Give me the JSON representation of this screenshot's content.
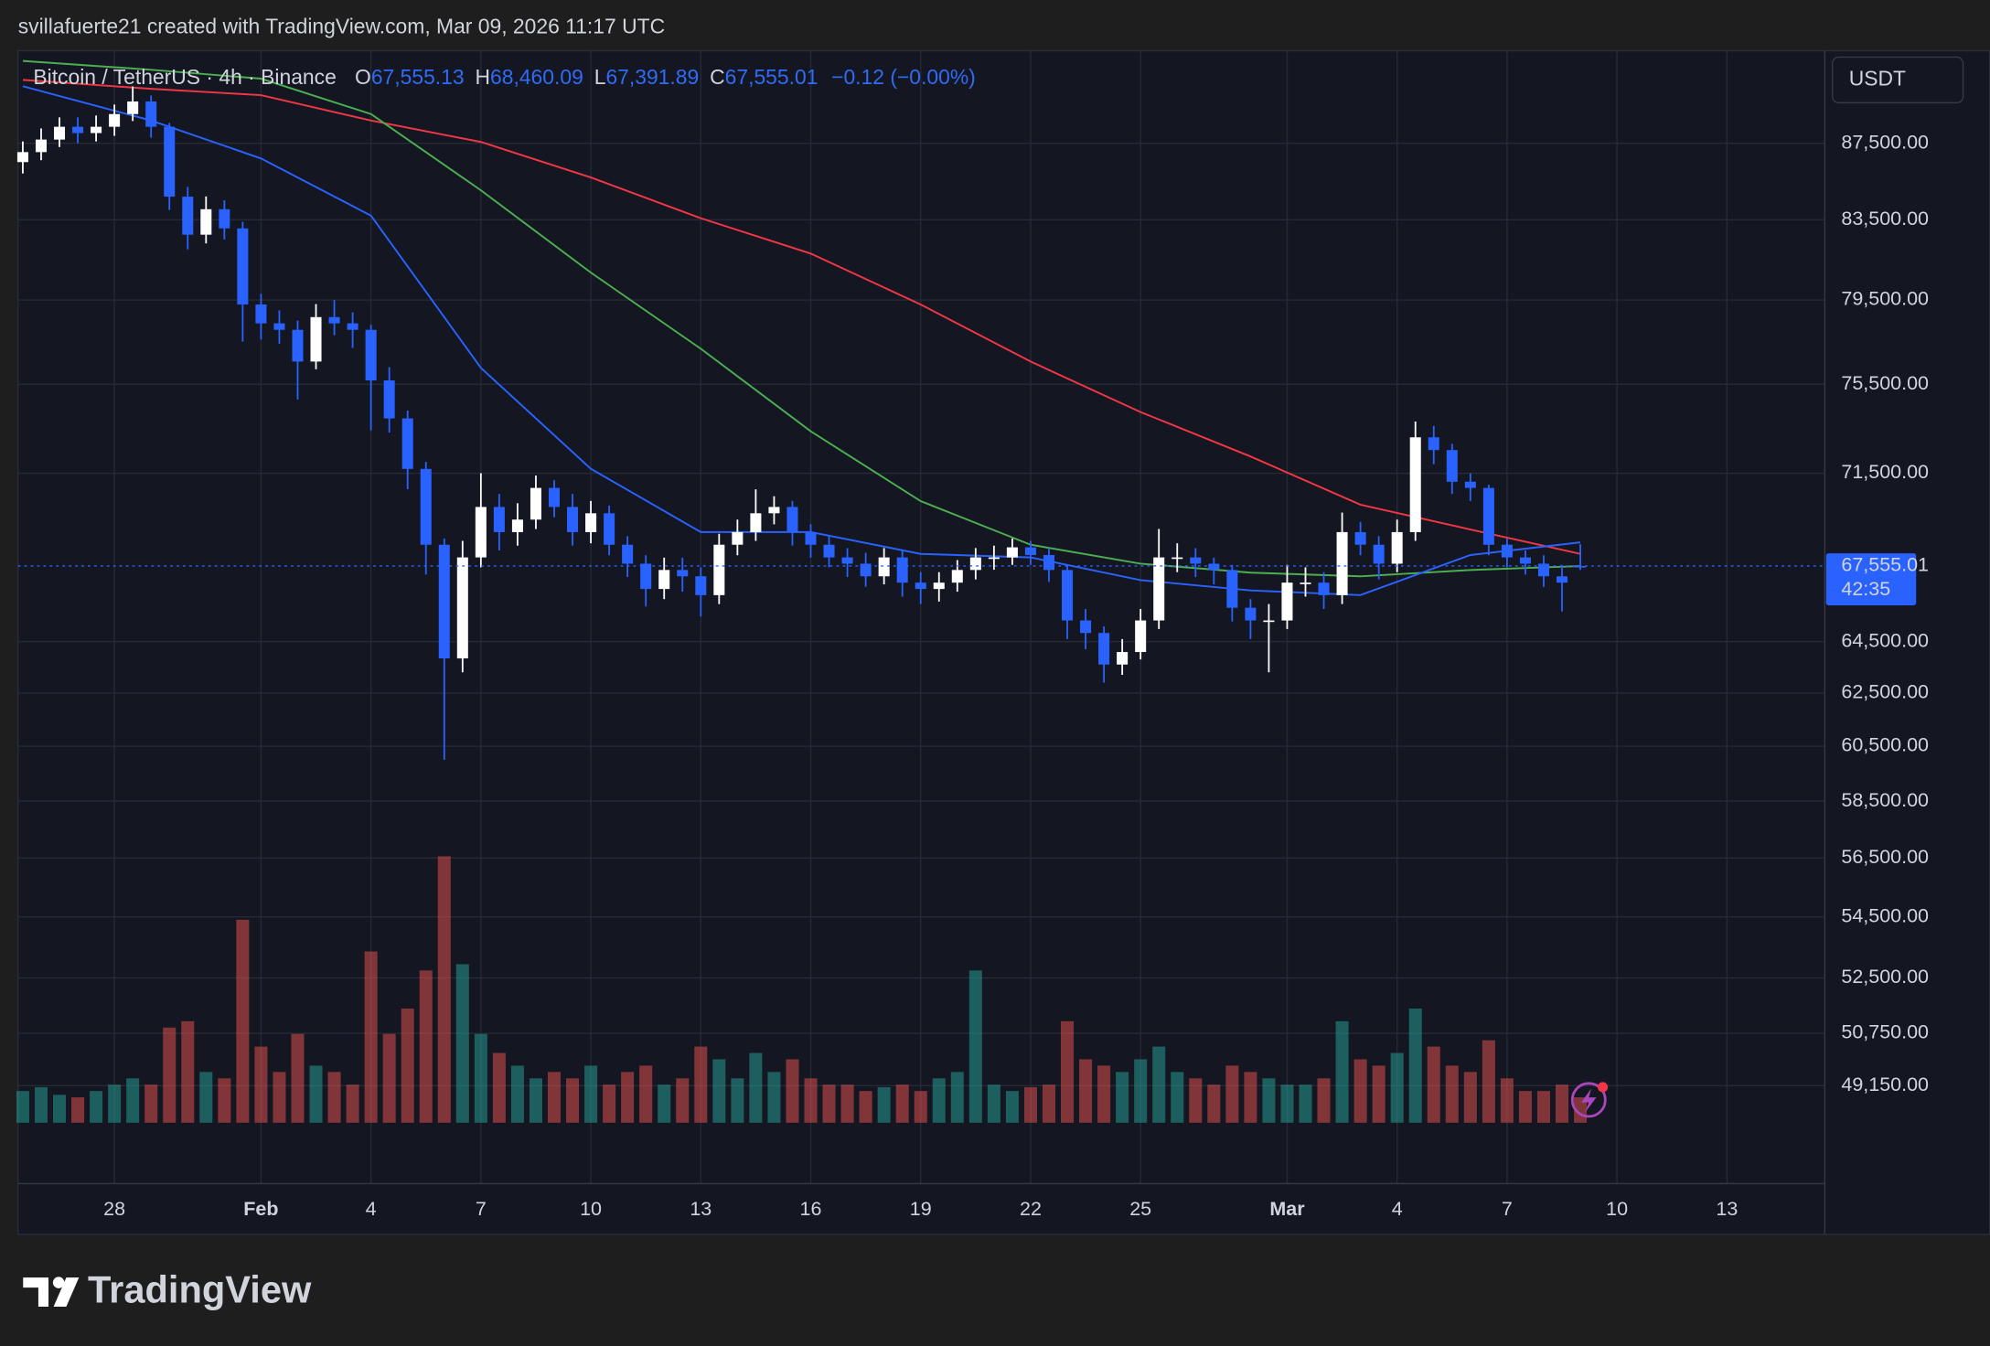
{
  "attribution": "svillafuerte21 created with TradingView.com, Mar 09, 2026 11:17 UTC",
  "brand": "TradingView",
  "chart_data": {
    "type": "candlestick",
    "title": "Bitcoin / TetherUS · 4h · Binance",
    "legend": {
      "ohlc": [
        {
          "label": "O",
          "value": "67,555.13"
        },
        {
          "label": "H",
          "value": "68,460.09"
        },
        {
          "label": "L",
          "value": "67,391.89"
        },
        {
          "label": "C",
          "value": "67,555.01"
        }
      ],
      "change": "−0.12 (−0.00%)"
    },
    "currency": "USDT",
    "x": [
      25.5,
      26,
      26.5,
      27,
      27.5,
      28,
      28.5,
      29,
      29.5,
      30,
      30.5,
      31,
      31.5,
      32,
      32.5,
      33,
      33.5,
      34,
      34.5,
      35,
      35.5,
      36,
      36.5,
      37,
      37.5,
      38,
      38.5,
      39,
      39.5,
      40,
      40.5,
      41,
      41.5,
      42,
      42.5,
      43,
      43.5,
      44,
      44.5,
      45,
      45.5,
      46,
      46.5,
      47,
      47.5,
      48,
      48.5,
      49,
      49.5,
      50,
      50.5,
      51,
      51.5,
      52,
      52.5,
      53,
      53.5,
      54,
      54.5,
      55,
      55.5,
      56,
      56.5,
      57,
      57.5,
      58,
      58.5,
      59,
      59.5,
      60,
      60.5,
      61,
      61.5,
      62,
      62.5,
      63,
      63.5,
      64,
      64.5,
      65,
      65.5,
      66,
      66.5,
      67,
      67.5,
      68
    ],
    "open": [
      86500,
      87030,
      87700,
      88390,
      88050,
      88390,
      89080,
      89770,
      88390,
      84690,
      82740,
      84040,
      83060,
      79280,
      78370,
      78060,
      76560,
      78670,
      78370,
      78060,
      75680,
      73940,
      71690,
      68440,
      63840,
      67910,
      70040,
      68970,
      69500,
      70860,
      70040,
      68970,
      69770,
      68440,
      67650,
      66610,
      67390,
      67130,
      66360,
      68440,
      68970,
      69770,
      70040,
      68970,
      68440,
      67910,
      67650,
      67130,
      67910,
      66870,
      66610,
      66870,
      67390,
      67910,
      67910,
      68330,
      68010,
      67390,
      65340,
      64840,
      63600,
      64090,
      65340,
      67910,
      67910,
      67650,
      67390,
      65850,
      65340,
      65340,
      66870,
      66870,
      66360,
      68970,
      68440,
      67650,
      68970,
      73090,
      72520,
      71130,
      70860,
      68440,
      67910,
      67650,
      67130,
      67555.13
    ],
    "high": [
      87600,
      88300,
      88900,
      88900,
      89000,
      89600,
      90600,
      90100,
      88600,
      85200,
      84700,
      84500,
      83400,
      79800,
      79000,
      78500,
      79300,
      79500,
      78900,
      78300,
      76300,
      74300,
      72000,
      68700,
      68600,
      71500,
      70600,
      70200,
      71400,
      71200,
      70600,
      70300,
      70100,
      68800,
      68000,
      67900,
      67900,
      67500,
      68900,
      69500,
      70800,
      70500,
      70300,
      69300,
      68800,
      68300,
      68100,
      68300,
      68200,
      67300,
      67300,
      67800,
      68300,
      68400,
      68700,
      68600,
      68300,
      67600,
      65800,
      65100,
      64600,
      65800,
      69100,
      68500,
      68300,
      67900,
      67600,
      66200,
      66000,
      67600,
      67500,
      67300,
      69800,
      69400,
      68800,
      69500,
      73800,
      73600,
      72800,
      71500,
      71000,
      68700,
      68200,
      68000,
      67600,
      68460.09
    ],
    "low": [
      85900,
      86600,
      87300,
      87500,
      87600,
      87900,
      88700,
      87800,
      84000,
      82000,
      82300,
      82500,
      77500,
      77600,
      77400,
      74800,
      76200,
      77800,
      77200,
      73400,
      73300,
      70800,
      67200,
      60000,
      63300,
      67500,
      68200,
      68400,
      69100,
      69600,
      68400,
      68500,
      68000,
      67100,
      65900,
      66200,
      66500,
      65500,
      66000,
      68000,
      68600,
      69300,
      68400,
      67900,
      67500,
      67100,
      66700,
      66800,
      66300,
      66000,
      66100,
      66500,
      67000,
      67400,
      67600,
      67600,
      66900,
      64600,
      64200,
      62900,
      63200,
      63800,
      65000,
      67300,
      67100,
      66800,
      65300,
      64600,
      63300,
      65000,
      66300,
      65800,
      66000,
      68000,
      67000,
      67300,
      68600,
      71900,
      70600,
      70300,
      68000,
      67500,
      67200,
      66700,
      65700,
      67391.89
    ],
    "close": [
      87030,
      87700,
      88390,
      88050,
      88390,
      89080,
      89770,
      88390,
      84690,
      82740,
      84040,
      83060,
      79280,
      78370,
      78060,
      76560,
      78670,
      78370,
      78060,
      75680,
      73940,
      71690,
      68440,
      63840,
      67910,
      70040,
      68970,
      69500,
      70860,
      70040,
      68970,
      69770,
      68440,
      67650,
      66610,
      67390,
      67130,
      66360,
      68440,
      68970,
      69770,
      70040,
      68970,
      68440,
      67910,
      67650,
      67130,
      67910,
      66870,
      66610,
      66870,
      67390,
      67910,
      67910,
      68330,
      68010,
      67390,
      65340,
      64840,
      63600,
      64090,
      65340,
      67910,
      67910,
      67650,
      67390,
      65850,
      65340,
      65340,
      66870,
      66870,
      66360,
      68970,
      68440,
      67650,
      68970,
      73090,
      72520,
      71130,
      70860,
      68440,
      67910,
      67650,
      67130,
      66870,
      67555.01
    ],
    "volume": [
      25,
      28,
      22,
      20,
      25,
      30,
      35,
      30,
      75,
      80,
      40,
      35,
      160,
      60,
      40,
      70,
      45,
      40,
      30,
      135,
      70,
      90,
      120,
      210,
      125,
      70,
      55,
      45,
      35,
      40,
      35,
      45,
      30,
      40,
      45,
      30,
      35,
      60,
      50,
      35,
      55,
      40,
      50,
      35,
      30,
      30,
      25,
      28,
      30,
      25,
      35,
      40,
      120,
      30,
      25,
      28,
      30,
      80,
      50,
      45,
      40,
      50,
      60,
      40,
      35,
      30,
      45,
      40,
      35,
      30,
      30,
      35,
      80,
      50,
      45,
      55,
      90,
      60,
      45,
      40,
      65,
      35,
      25,
      25,
      30,
      20
    ],
    "up_color": "#ffffff",
    "down_color": "#2962ff",
    "volume_up_color": "#26a69a",
    "volume_down_color": "#ef5350",
    "moving_averages": [
      {
        "color": "#f23645",
        "x": [
          25.5,
          29,
          32,
          35,
          38,
          41,
          44,
          47,
          50,
          53,
          56,
          59,
          62,
          65,
          68
        ],
        "values": [
          90960,
          90470,
          90120,
          88730,
          87570,
          85690,
          83580,
          81790,
          79280,
          76560,
          74230,
          72240,
          70140,
          69080,
          68060
        ]
      },
      {
        "color": "#4caf50",
        "x": [
          25.5,
          29,
          32,
          35,
          38,
          41,
          44,
          47,
          50,
          53,
          56,
          59,
          62,
          65,
          68
        ],
        "values": [
          92030,
          91530,
          91030,
          89080,
          85020,
          80840,
          77160,
          73360,
          70290,
          68440,
          67650,
          67280,
          67130,
          67390,
          67550
        ]
      },
      {
        "color": "#2962ff",
        "x": [
          25.5,
          29,
          32,
          35,
          38,
          41,
          44,
          47,
          50,
          53,
          56,
          59,
          62,
          65,
          68
        ],
        "values": [
          90610,
          88730,
          86690,
          83710,
          76260,
          71690,
          68970,
          68970,
          68060,
          67910,
          66970,
          66550,
          66360,
          68010,
          68540
        ]
      }
    ],
    "log_scale": true,
    "grid": true,
    "ylim": [
      46290,
      92600
    ],
    "yticks": [
      {
        "value": 87500,
        "label": "87,500.00"
      },
      {
        "value": 83500,
        "label": "83,500.00"
      },
      {
        "value": 79500,
        "label": "79,500.00"
      },
      {
        "value": 75500,
        "label": "75,500.00"
      },
      {
        "value": 71500,
        "label": "71,500.00"
      },
      {
        "value": 64500,
        "label": "64,500.00"
      },
      {
        "value": 62500,
        "label": "62,500.00"
      },
      {
        "value": 60500,
        "label": "60,500.00"
      },
      {
        "value": 58500,
        "label": "58,500.00"
      },
      {
        "value": 56500,
        "label": "56,500.00"
      },
      {
        "value": 54500,
        "label": "54,500.00"
      },
      {
        "value": 52500,
        "label": "52,500.00"
      },
      {
        "value": 50750,
        "label": "50,750.00"
      },
      {
        "value": 49150,
        "label": "49,150.00"
      }
    ],
    "xlim": [
      25.37,
      74.67
    ],
    "xticks": [
      28,
      {
        "value": 32,
        "label": "Feb"
      },
      {
        "value": 35,
        "label": "4"
      },
      {
        "value": 38,
        "label": "7"
      },
      {
        "value": 41,
        "label": "10"
      },
      {
        "value": 44,
        "label": "13"
      },
      {
        "value": 47,
        "label": "16"
      },
      {
        "value": 50,
        "label": "19"
      },
      {
        "value": 53,
        "label": "22"
      },
      {
        "value": 56,
        "label": "25"
      },
      {
        "value": 60,
        "label": "Mar"
      },
      {
        "value": 63,
        "label": "4"
      },
      {
        "value": 66,
        "label": "7"
      },
      {
        "value": 69,
        "label": "10"
      },
      {
        "value": 72,
        "label": "13"
      }
    ],
    "last_price": {
      "value": 67555.01,
      "label": "67,555.01"
    },
    "countdown": "42:35"
  }
}
